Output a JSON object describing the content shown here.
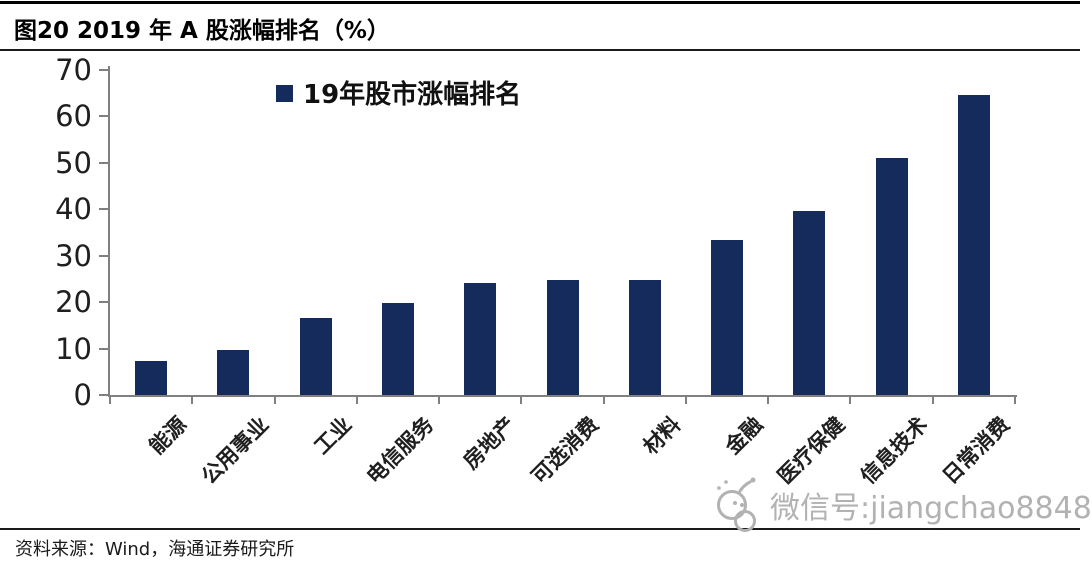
{
  "page": {
    "title": "图20 2019 年 A 股涨幅排名（%）",
    "source_note": "资料来源：Wind，海通证券研究所",
    "watermark": {
      "icon": "wechat-icon",
      "text": "微信号:jiangchao8848"
    }
  },
  "chart_data": {
    "type": "bar",
    "title": "图20 2019 年 A 股涨幅排名（%）",
    "legend": {
      "label": "19年股市涨幅排名",
      "position": "top-center"
    },
    "categories": [
      "能源",
      "公用事业",
      "工业",
      "电信服务",
      "房地产",
      "可选消费",
      "材料",
      "金融",
      "医疗保健",
      "信息技术",
      "日常消费"
    ],
    "values": [
      7.4,
      9.6,
      16.5,
      19.8,
      24.2,
      24.8,
      24.7,
      33.4,
      39.7,
      51.1,
      64.7
    ],
    "xlabel": "",
    "ylabel": "",
    "ylim": [
      0,
      70
    ],
    "yticks": [
      0,
      10,
      20,
      30,
      40,
      50,
      60,
      70
    ],
    "grid": false,
    "bar_color": "#142B5C",
    "axis_color": "#808080"
  }
}
